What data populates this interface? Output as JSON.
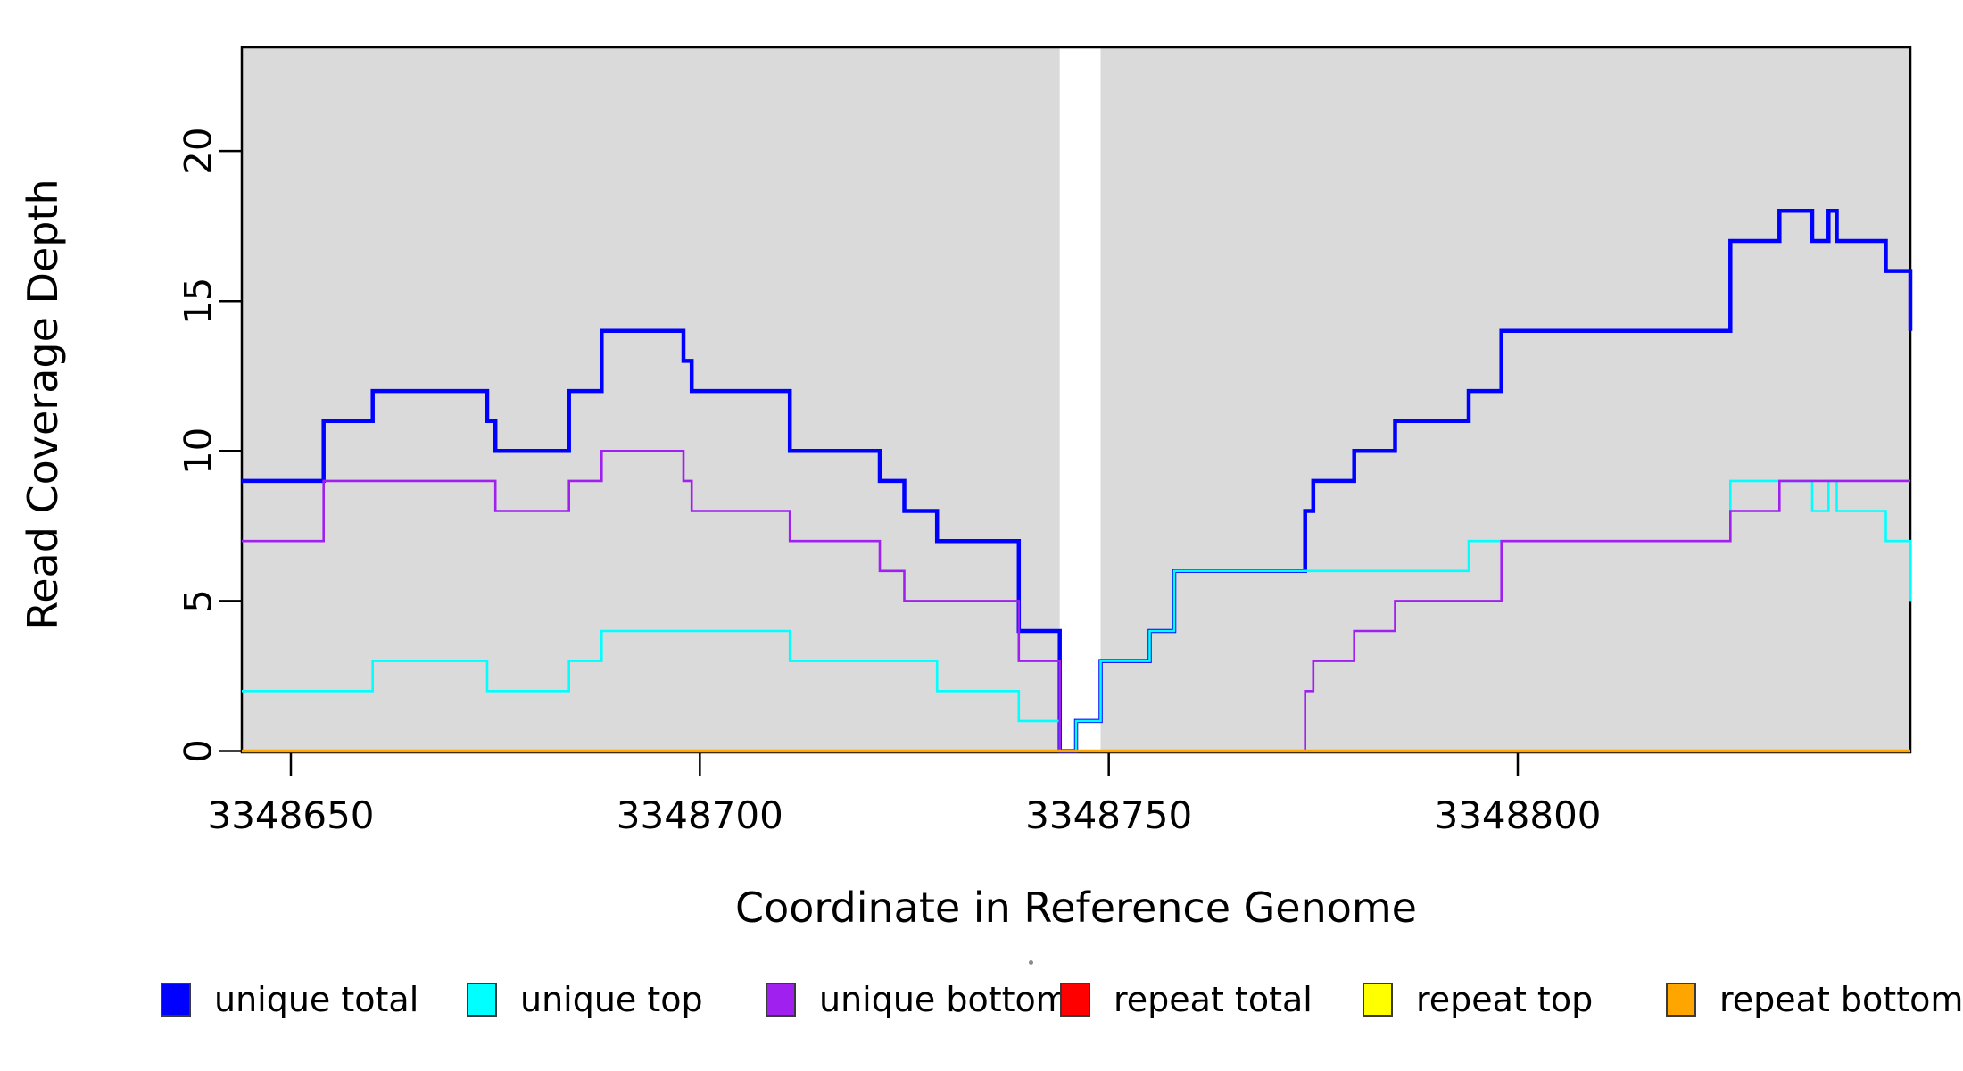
{
  "figure": {
    "x_axis_title": "Coordinate in Reference Genome",
    "y_axis_title": "Read Coverage Depth",
    "background_color": "#FFFFFF",
    "plot_background_color": "#DADADA"
  },
  "chart_data": {
    "type": "line",
    "subtype": "step-coverage",
    "title": "",
    "xlabel": "Coordinate in Reference Genome",
    "ylabel": "Read Coverage Depth",
    "x_range": [
      3348644,
      3348848
    ],
    "y_range": [
      0,
      23.5
    ],
    "x_ticks": [
      3348650,
      3348700,
      3348750,
      3348800
    ],
    "y_ticks": [
      0,
      5,
      10,
      15,
      20
    ],
    "grid": false,
    "legend_position": "bottom",
    "gap_band": [
      3348744,
      3348749
    ],
    "series": [
      {
        "name": "unique total",
        "color": "#0000FF",
        "width": 4.5,
        "steps": [
          [
            3348644,
            9
          ],
          [
            3348654,
            11
          ],
          [
            3348660,
            12
          ],
          [
            3348674,
            11
          ],
          [
            3348675,
            10
          ],
          [
            3348684,
            12
          ],
          [
            3348688,
            14
          ],
          [
            3348698,
            13
          ],
          [
            3348699,
            12
          ],
          [
            3348711,
            10
          ],
          [
            3348722,
            9
          ],
          [
            3348725,
            8
          ],
          [
            3348729,
            7
          ],
          [
            3348739,
            4
          ],
          [
            3348744,
            0
          ],
          [
            3348746,
            1
          ],
          [
            3348749,
            3
          ],
          [
            3348755,
            4
          ],
          [
            3348758,
            6
          ],
          [
            3348774,
            8
          ],
          [
            3348775,
            9
          ],
          [
            3348780,
            10
          ],
          [
            3348785,
            11
          ],
          [
            3348794,
            12
          ],
          [
            3348798,
            14
          ],
          [
            3348826,
            17
          ],
          [
            3348832,
            18
          ],
          [
            3348836,
            17
          ],
          [
            3348838,
            18
          ],
          [
            3348839,
            17
          ],
          [
            3348845,
            16
          ],
          [
            3348848,
            14
          ]
        ]
      },
      {
        "name": "unique top",
        "color": "#00FFFF",
        "width": 2.6,
        "steps": [
          [
            3348644,
            2
          ],
          [
            3348660,
            3
          ],
          [
            3348674,
            2
          ],
          [
            3348684,
            3
          ],
          [
            3348688,
            4
          ],
          [
            3348711,
            3
          ],
          [
            3348729,
            2
          ],
          [
            3348739,
            1
          ],
          [
            3348744,
            0
          ],
          [
            3348746,
            1
          ],
          [
            3348749,
            3
          ],
          [
            3348755,
            4
          ],
          [
            3348758,
            6
          ],
          [
            3348794,
            7
          ],
          [
            3348826,
            9
          ],
          [
            3348836,
            8
          ],
          [
            3348838,
            9
          ],
          [
            3348839,
            8
          ],
          [
            3348845,
            7
          ],
          [
            3348848,
            5
          ]
        ]
      },
      {
        "name": "unique bottom",
        "color": "#A020F0",
        "width": 2.6,
        "steps": [
          [
            3348644,
            7
          ],
          [
            3348654,
            9
          ],
          [
            3348675,
            8
          ],
          [
            3348684,
            9
          ],
          [
            3348688,
            10
          ],
          [
            3348698,
            9
          ],
          [
            3348699,
            8
          ],
          [
            3348711,
            7
          ],
          [
            3348722,
            6
          ],
          [
            3348725,
            5
          ],
          [
            3348739,
            3
          ],
          [
            3348744,
            0
          ],
          [
            3348774,
            2
          ],
          [
            3348775,
            3
          ],
          [
            3348780,
            4
          ],
          [
            3348785,
            5
          ],
          [
            3348798,
            7
          ],
          [
            3348826,
            8
          ],
          [
            3348832,
            9
          ],
          [
            3348848,
            9
          ]
        ]
      },
      {
        "name": "repeat total",
        "color": "#FF0000",
        "width": 2.6,
        "steps": [
          [
            3348644,
            0
          ],
          [
            3348848,
            0
          ]
        ]
      },
      {
        "name": "repeat top",
        "color": "#FFFF00",
        "width": 2.6,
        "steps": [
          [
            3348644,
            0
          ],
          [
            3348848,
            0
          ]
        ]
      },
      {
        "name": "repeat bottom",
        "color": "#FFA500",
        "width": 3.5,
        "steps": [
          [
            3348644,
            0
          ],
          [
            3348848,
            0
          ]
        ]
      }
    ]
  },
  "legend": {
    "items": [
      {
        "label": "unique total",
        "color": "#0000FF"
      },
      {
        "label": "unique top",
        "color": "#00FFFF"
      },
      {
        "label": "unique bottom",
        "color": "#A020F0"
      },
      {
        "label": "repeat total",
        "color": "#FF0000"
      },
      {
        "label": "repeat top",
        "color": "#FFFF00"
      },
      {
        "label": "repeat bottom",
        "color": "#FFA500"
      }
    ]
  }
}
